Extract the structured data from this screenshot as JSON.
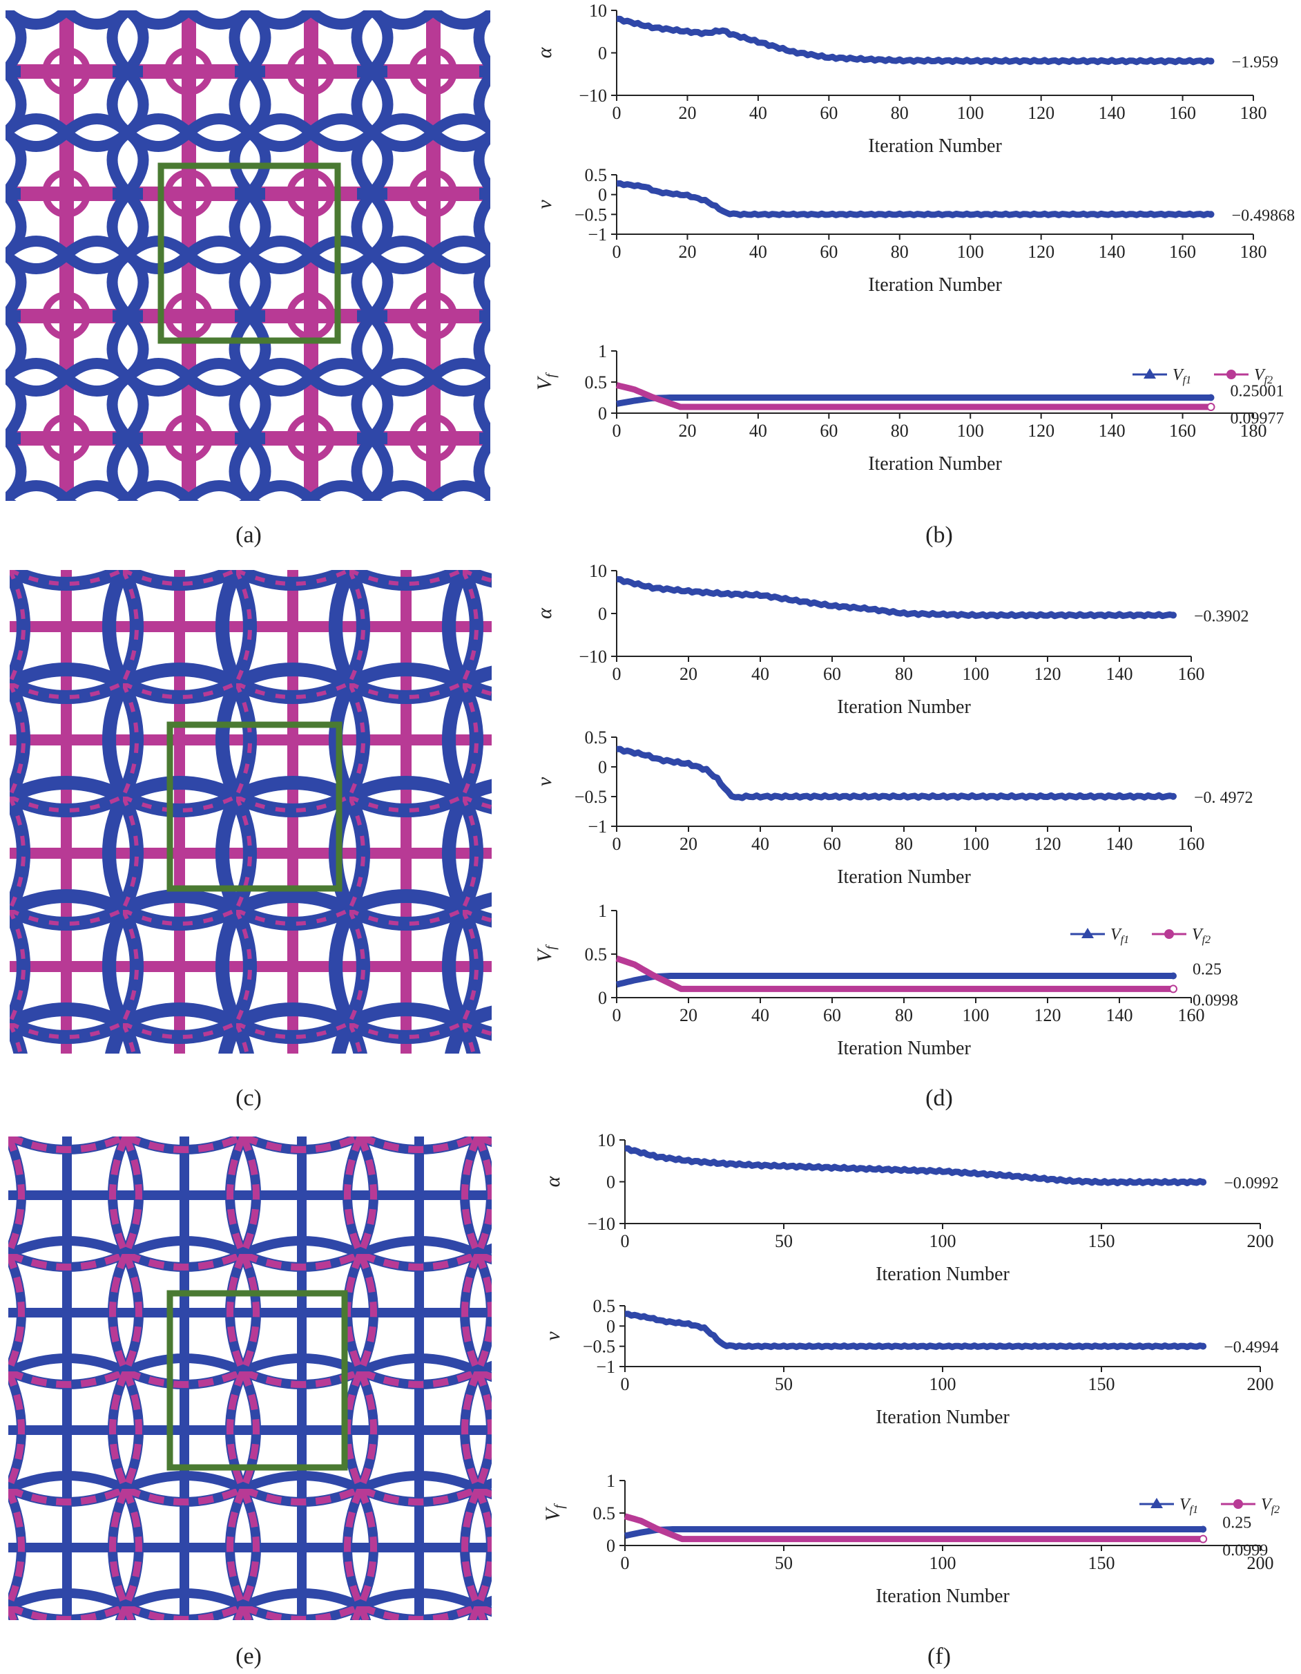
{
  "colors": {
    "blue": "#2f47a8",
    "magenta": "#b83a95",
    "green": "#4a7a32",
    "axis": "#222222"
  },
  "panels": {
    "a": {
      "label": "(a)"
    },
    "b": {
      "label": "(b)"
    },
    "c": {
      "label": "(c)"
    },
    "d": {
      "label": "(d)"
    },
    "e": {
      "label": "(e)"
    },
    "f": {
      "label": "(f)"
    }
  },
  "chart_data": [
    {
      "panel": "b",
      "type": "line",
      "xlabel": "Iteration Number",
      "xlim": [
        0,
        180
      ],
      "xticks": [
        "0",
        "20",
        "40",
        "60",
        "80",
        "100",
        "120",
        "140",
        "160",
        "180"
      ],
      "last_iteration": 168,
      "subplots": [
        {
          "ylabel": "α",
          "ylim": [
            -10,
            10
          ],
          "yticks": [
            "10",
            "0",
            "−10"
          ],
          "series": [
            {
              "name": "α",
              "color": "#2f47a8",
              "points": [
                [
                  0,
                  8
                ],
                [
                  10,
                  6
                ],
                [
                  20,
                  5
                ],
                [
                  25,
                  4.6
                ],
                [
                  30,
                  5.3
                ],
                [
                  32,
                  4.5
                ],
                [
                  40,
                  2.6
                ],
                [
                  50,
                  0.2
                ],
                [
                  60,
                  -1.1
                ],
                [
                  70,
                  -1.5
                ],
                [
                  80,
                  -1.8
                ],
                [
                  100,
                  -1.9
                ],
                [
                  168,
                  -1.959
                ]
              ]
            }
          ],
          "final_label": "−1.959"
        },
        {
          "ylabel": "ν",
          "ylim": [
            -1,
            0.5
          ],
          "yticks": [
            "0.5",
            "0",
            "−0.5",
            "−1"
          ],
          "series": [
            {
              "name": "ν",
              "color": "#2f47a8",
              "points": [
                [
                  0,
                  0.28
                ],
                [
                  8,
                  0.2
                ],
                [
                  10,
                  0.12
                ],
                [
                  12,
                  0.06
                ],
                [
                  20,
                  -0.02
                ],
                [
                  25,
                  -0.15
                ],
                [
                  28,
                  -0.3
                ],
                [
                  31,
                  -0.47
                ],
                [
                  35,
                  -0.5
                ],
                [
                  168,
                  -0.49868
                ]
              ]
            }
          ],
          "final_label": "−0.49868"
        },
        {
          "ylabel": "Vf",
          "ylim": [
            0,
            1
          ],
          "yticks": [
            "1",
            "0.5",
            "0"
          ],
          "legend": [
            "Vf1",
            "Vf2"
          ],
          "series": [
            {
              "name": "Vf1",
              "color": "#2f47a8",
              "marker": "triangle",
              "points": [
                [
                  0,
                  0.15
                ],
                [
                  5,
                  0.2
                ],
                [
                  10,
                  0.24
                ],
                [
                  15,
                  0.25
                ],
                [
                  168,
                  0.25001
                ]
              ]
            },
            {
              "name": "Vf2",
              "color": "#b83a95",
              "marker": "circle",
              "points": [
                [
                  0,
                  0.45
                ],
                [
                  5,
                  0.38
                ],
                [
                  10,
                  0.26
                ],
                [
                  15,
                  0.16
                ],
                [
                  18,
                  0.1
                ],
                [
                  168,
                  0.09977
                ]
              ]
            }
          ],
          "final_labels": [
            "0.25001",
            "0.09977"
          ]
        }
      ]
    },
    {
      "panel": "d",
      "type": "line",
      "xlabel": "Iteration Number",
      "xlim": [
        0,
        160
      ],
      "xticks": [
        "0",
        "20",
        "40",
        "60",
        "80",
        "100",
        "120",
        "140",
        "160"
      ],
      "last_iteration": 155,
      "subplots": [
        {
          "ylabel": "α",
          "ylim": [
            -10,
            10
          ],
          "yticks": [
            "10",
            "0",
            "−10"
          ],
          "series": [
            {
              "name": "α",
              "color": "#2f47a8",
              "points": [
                [
                  0,
                  8
                ],
                [
                  10,
                  6
                ],
                [
                  20,
                  5.2
                ],
                [
                  30,
                  4.6
                ],
                [
                  40,
                  4.3
                ],
                [
                  50,
                  3
                ],
                [
                  60,
                  1.8
                ],
                [
                  70,
                  1.1
                ],
                [
                  80,
                  0
                ],
                [
                  90,
                  -0.2
                ],
                [
                  100,
                  -0.4
                ],
                [
                  155,
                  -0.3902
                ]
              ]
            }
          ],
          "final_label": "−0.3902"
        },
        {
          "ylabel": "ν",
          "ylim": [
            -1,
            0.5
          ],
          "yticks": [
            "0.5",
            "0",
            "−0.5",
            "−1"
          ],
          "series": [
            {
              "name": "ν",
              "color": "#2f47a8",
              "points": [
                [
                  0,
                  0.3
                ],
                [
                  8,
                  0.2
                ],
                [
                  12,
                  0.12
                ],
                [
                  20,
                  0.05
                ],
                [
                  25,
                  -0.05
                ],
                [
                  28,
                  -0.2
                ],
                [
                  31,
                  -0.43
                ],
                [
                  33,
                  -0.52
                ],
                [
                  36,
                  -0.5
                ],
                [
                  155,
                  -0.4972
                ]
              ]
            }
          ],
          "final_label": "−0. 4972"
        },
        {
          "ylabel": "Vf",
          "ylim": [
            0,
            1
          ],
          "yticks": [
            "1",
            "0.5",
            "0"
          ],
          "legend": [
            "Vf1",
            "Vf2"
          ],
          "series": [
            {
              "name": "Vf1",
              "color": "#2f47a8",
              "marker": "triangle",
              "points": [
                [
                  0,
                  0.15
                ],
                [
                  5,
                  0.2
                ],
                [
                  10,
                  0.24
                ],
                [
                  15,
                  0.25
                ],
                [
                  155,
                  0.25
                ]
              ]
            },
            {
              "name": "Vf2",
              "color": "#b83a95",
              "marker": "circle",
              "points": [
                [
                  0,
                  0.45
                ],
                [
                  5,
                  0.38
                ],
                [
                  10,
                  0.26
                ],
                [
                  15,
                  0.16
                ],
                [
                  18,
                  0.1
                ],
                [
                  155,
                  0.0998
                ]
              ]
            }
          ],
          "final_labels": [
            "0.25",
            "0.0998"
          ]
        }
      ]
    },
    {
      "panel": "f",
      "type": "line",
      "xlabel": "Iteration Number",
      "xlim": [
        0,
        200
      ],
      "xticks": [
        "0",
        "50",
        "100",
        "150",
        "200"
      ],
      "last_iteration": 182,
      "subplots": [
        {
          "ylabel": "α",
          "ylim": [
            -10,
            10
          ],
          "yticks": [
            "10",
            "0",
            "−10"
          ],
          "series": [
            {
              "name": "α",
              "color": "#2f47a8",
              "points": [
                [
                  0,
                  8
                ],
                [
                  10,
                  6
                ],
                [
                  20,
                  5
                ],
                [
                  30,
                  4.4
                ],
                [
                  40,
                  4
                ],
                [
                  60,
                  3.5
                ],
                [
                  80,
                  3
                ],
                [
                  100,
                  2.5
                ],
                [
                  120,
                  1.5
                ],
                [
                  140,
                  0.2
                ],
                [
                  150,
                  -0.1
                ],
                [
                  182,
                  -0.0992
                ]
              ]
            }
          ],
          "final_label": "−0.0992"
        },
        {
          "ylabel": "ν",
          "ylim": [
            -1,
            0.5
          ],
          "yticks": [
            "0.5",
            "0",
            "−0.5",
            "−1"
          ],
          "series": [
            {
              "name": "ν",
              "color": "#2f47a8",
              "points": [
                [
                  0,
                  0.3
                ],
                [
                  8,
                  0.2
                ],
                [
                  12,
                  0.12
                ],
                [
                  20,
                  0.05
                ],
                [
                  25,
                  -0.05
                ],
                [
                  28,
                  -0.25
                ],
                [
                  31,
                  -0.47
                ],
                [
                  35,
                  -0.5
                ],
                [
                  182,
                  -0.4994
                ]
              ]
            }
          ],
          "final_label": "−0.4994"
        },
        {
          "ylabel": "Vf",
          "ylim": [
            0,
            1
          ],
          "yticks": [
            "1",
            "0.5",
            "0"
          ],
          "legend": [
            "Vf1",
            "Vf2"
          ],
          "series": [
            {
              "name": "Vf1",
              "color": "#2f47a8",
              "marker": "triangle",
              "points": [
                [
                  0,
                  0.15
                ],
                [
                  5,
                  0.2
                ],
                [
                  10,
                  0.24
                ],
                [
                  15,
                  0.25
                ],
                [
                  182,
                  0.25
                ]
              ]
            },
            {
              "name": "Vf2",
              "color": "#b83a95",
              "marker": "circle",
              "points": [
                [
                  0,
                  0.45
                ],
                [
                  5,
                  0.38
                ],
                [
                  10,
                  0.26
                ],
                [
                  15,
                  0.16
                ],
                [
                  18,
                  0.1
                ],
                [
                  182,
                  0.0999
                ]
              ]
            }
          ],
          "final_labels": [
            "0.25",
            "0.0999"
          ]
        }
      ]
    }
  ]
}
